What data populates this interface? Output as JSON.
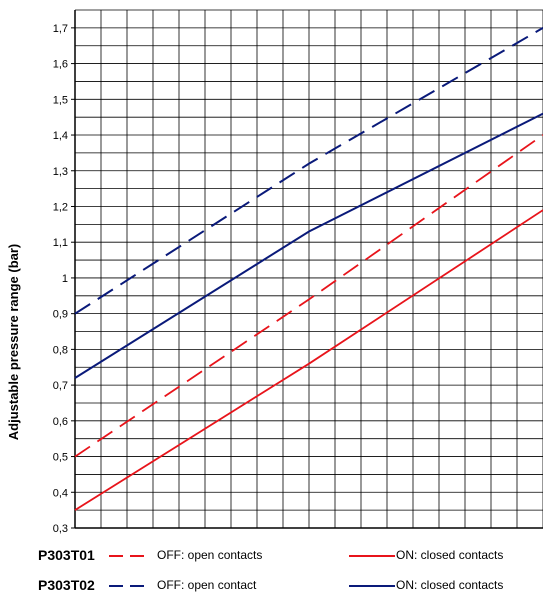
{
  "chart_data": {
    "type": "line",
    "title": "",
    "xlabel": "",
    "ylabel": "Adjustable pressure range (bar)",
    "ylim": [
      0.3,
      1.75
    ],
    "xlim": [
      0,
      1
    ],
    "yticks": [
      "0,3",
      "0,4",
      "0,5",
      "0,6",
      "0,7",
      "0,8",
      "0,9",
      "1",
      "1,1",
      "1,2",
      "1,3",
      "1,4",
      "1,5",
      "1,6",
      "1,7"
    ],
    "grid": true,
    "x": [
      0,
      0.5,
      1
    ],
    "series": [
      {
        "model": "P303T01",
        "name": "OFF: open contacts",
        "style": "dashed",
        "color": "#e8141b",
        "values": [
          0.5,
          0.94,
          1.4
        ]
      },
      {
        "model": "P303T01",
        "name": "ON: closed contacts",
        "style": "solid",
        "color": "#e8141b",
        "values": [
          0.35,
          0.76,
          1.19
        ]
      },
      {
        "model": "P303T02",
        "name": "OFF: open contact",
        "style": "dashed",
        "color": "#0a1a7a",
        "values": [
          0.9,
          1.32,
          1.7
        ]
      },
      {
        "model": "P303T02",
        "name": "ON: closed contacts",
        "style": "solid",
        "color": "#0a1a7a",
        "values": [
          0.72,
          1.13,
          1.46
        ]
      }
    ]
  },
  "legend": {
    "rows": [
      {
        "model": "P303T01",
        "off_label": "OFF: open contacts",
        "on_label": "ON: closed contacts",
        "color": "#e8141b"
      },
      {
        "model": "P303T02",
        "off_label": "OFF: open contact",
        "on_label": "ON: closed contacts",
        "color": "#0a1a7a"
      }
    ]
  }
}
